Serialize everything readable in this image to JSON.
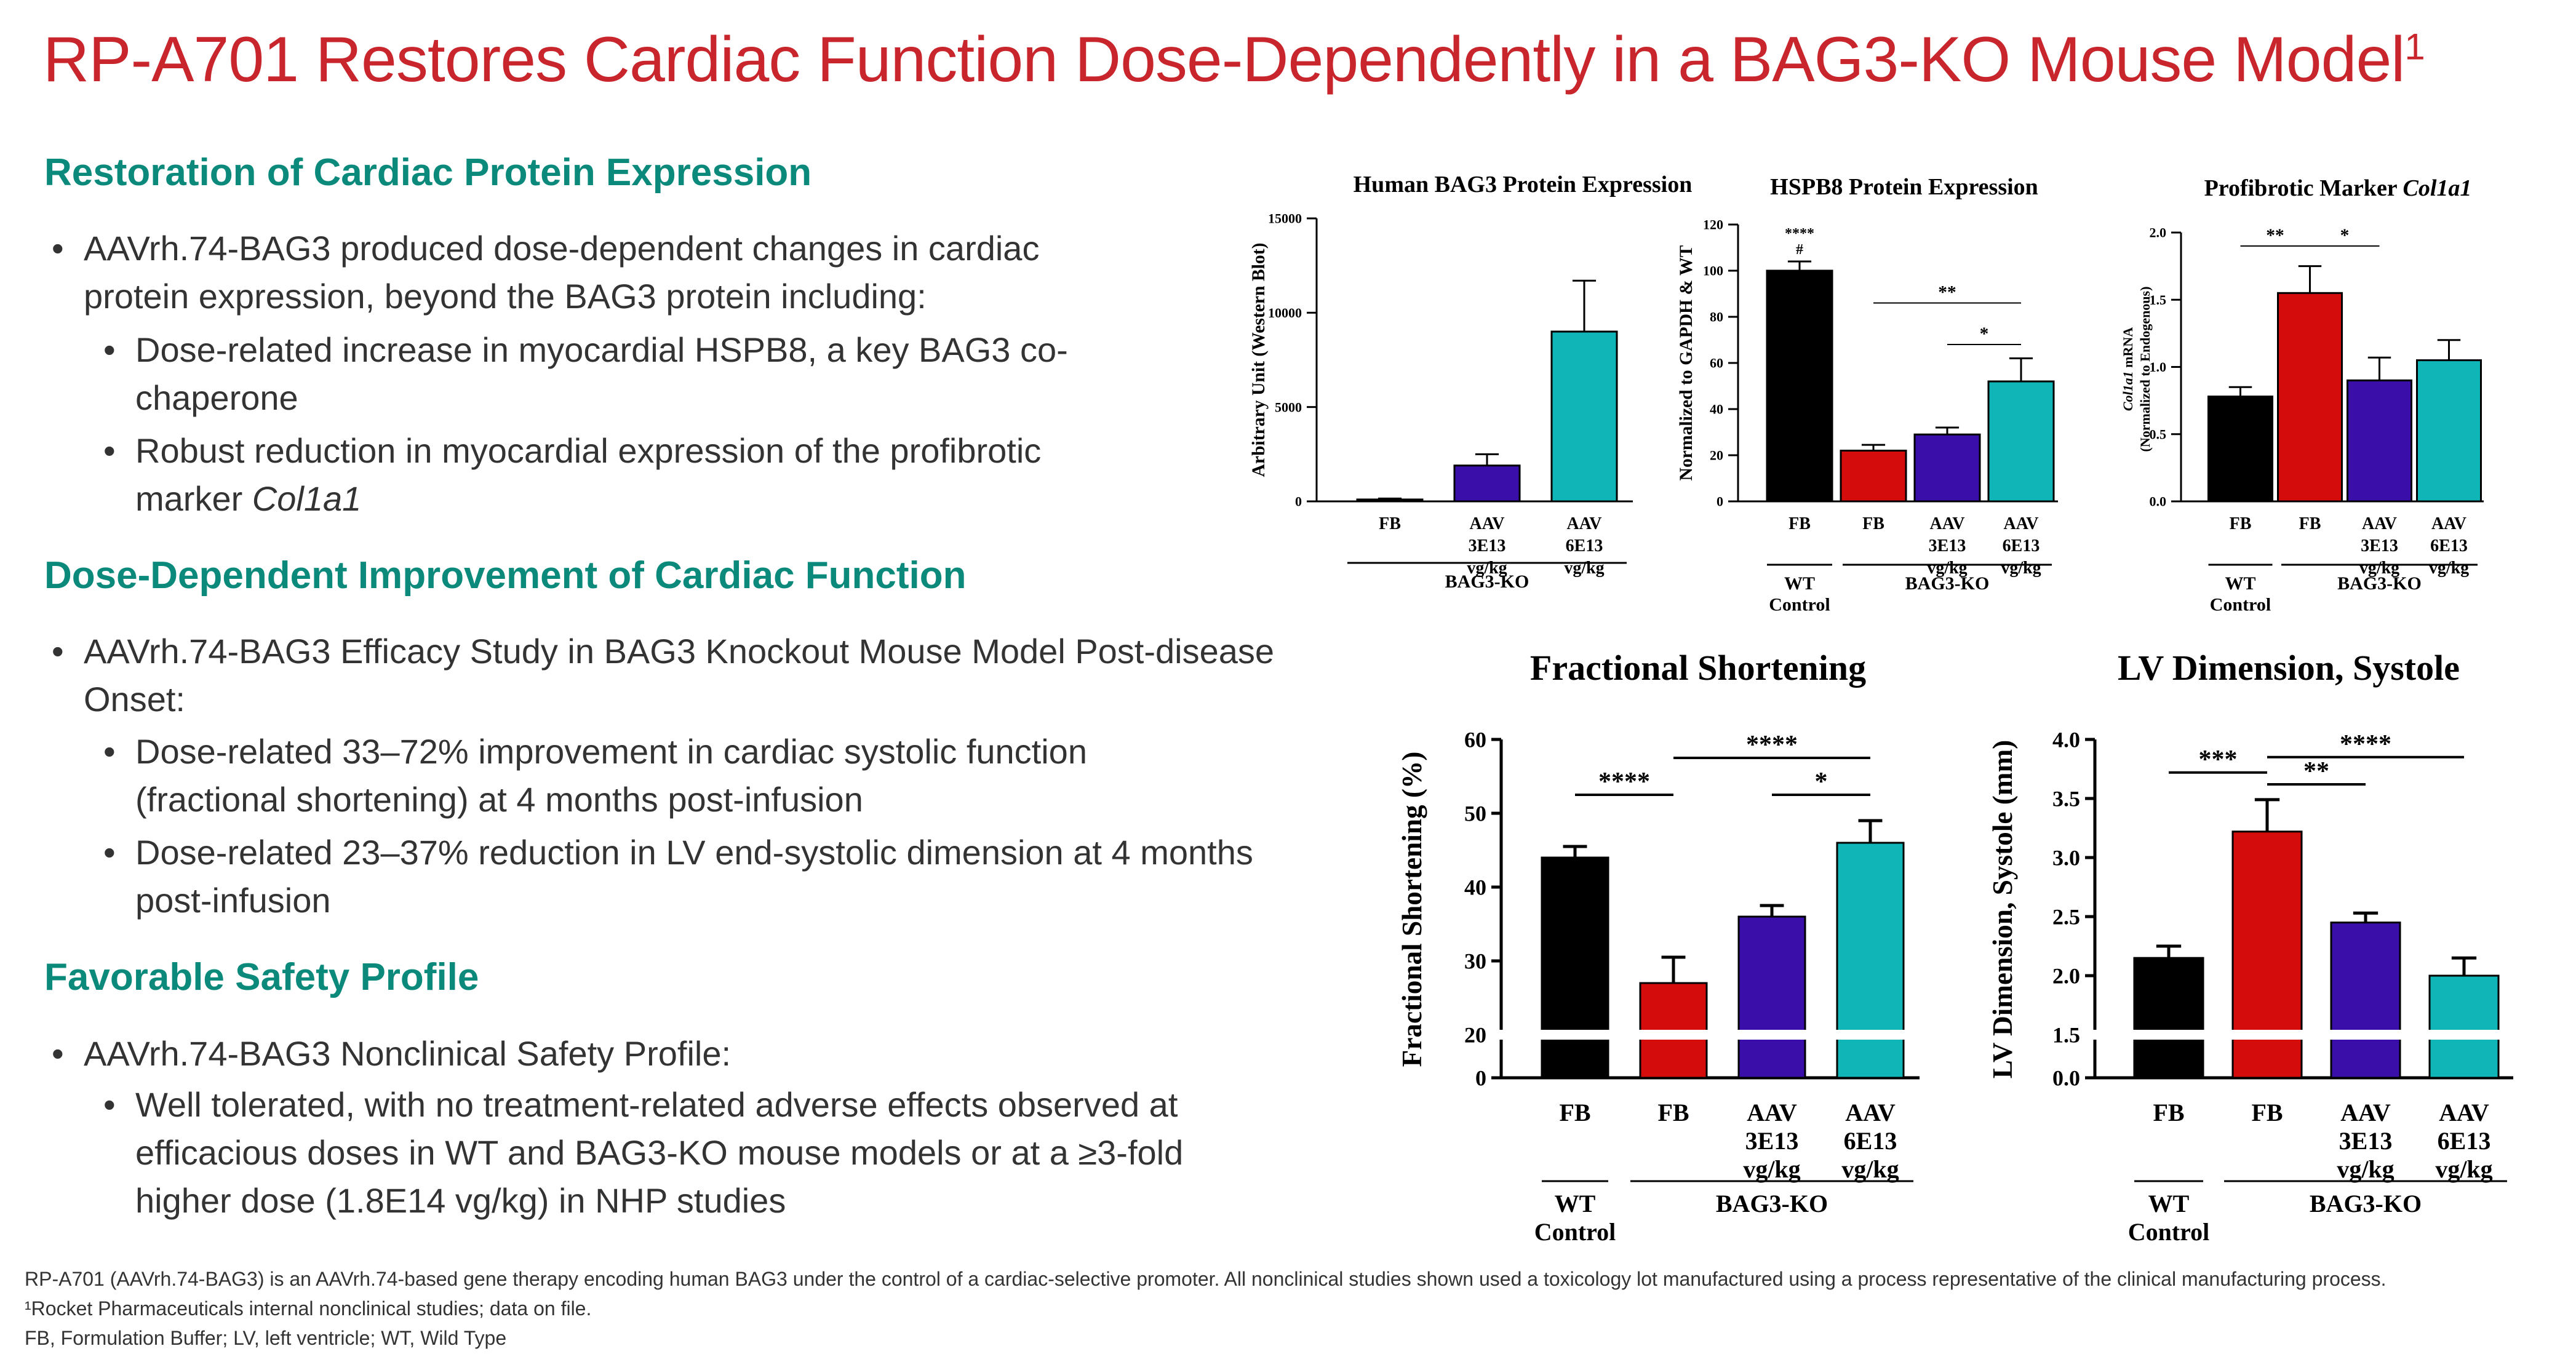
{
  "slide": {
    "title": "RP-A701 Restores Cardiac Function Dose-Dependently in a BAG3-KO Mouse Model",
    "title_sup": "1"
  },
  "sections": [
    {
      "heading": "Restoration of Cardiac Protein Expression",
      "b1_line1": "AAVrh.74-BAG3 produced dose-dependent changes in cardiac",
      "b1_line2": "protein expression, beyond the BAG3 protein including:",
      "s1_line1": "Dose-related increase in myocardial HSPB8, a key BAG3 co-",
      "s1_line2": "chaperone",
      "s2_line1": "Robust reduction in myocardial expression of the profibrotic",
      "s2_line2_a": "marker ",
      "s2_line2_b": "Col1a1"
    },
    {
      "heading": "Dose-Dependent Improvement of Cardiac Function",
      "b1_line1": "AAVrh.74-BAG3 Efficacy Study in BAG3 Knockout Mouse Model Post-disease",
      "b1_line2": "Onset:",
      "s1_line1": "Dose-related 33–72% improvement in cardiac systolic function",
      "s1_line2": "(fractional shortening) at 4 months post-infusion",
      "s2_line1": "Dose-related 23–37% reduction in LV end-systolic dimension at 4 months",
      "s2_line2": "post-infusion"
    },
    {
      "heading": "Favorable Safety Profile",
      "b1_line1": "AAVrh.74-BAG3 Nonclinical Safety Profile:",
      "s1_line1": "Well tolerated, with no treatment-related adverse effects observed at",
      "s1_line2": "efficacious doses in WT and BAG3-KO mouse models or at a ≥3-fold",
      "s1_line3": "higher dose (1.8E14 vg/kg) in NHP studies"
    }
  ],
  "footnotes": {
    "line1": "RP-A701 (AAVrh.74-BAG3) is an AAVrh.74-based gene therapy encoding human BAG3 under the control of a cardiac-selective promoter. All nonclinical studies shown used a toxicology lot manufactured using a process representative of the clinical manufacturing process.",
    "line2": "¹Rocket Pharmaceuticals internal nonclinical studies; data on file.",
    "line3": "FB, Formulation Buffer; LV, left ventricle; WT, Wild Type"
  },
  "group_labels": {
    "wt": "WT",
    "control": "Control",
    "ko": "BAG3-KO"
  },
  "chart_data": [
    {
      "type": "bar",
      "title": "Human BAG3 Protein Expression",
      "ylabel": "Arbitrary Unit (Western Blot)",
      "ylim": [
        0,
        15000
      ],
      "yticks": [
        0,
        5000,
        10000,
        15000
      ],
      "categories": [
        [
          "FB"
        ],
        [
          "AAV",
          "3E13",
          "vg/kg"
        ],
        [
          "AAV",
          "6E13",
          "vg/kg"
        ]
      ],
      "values": [
        100,
        1900,
        9000
      ],
      "errors": [
        50,
        600,
        2700
      ],
      "colors": [
        "#000000",
        "#3a0ea8",
        "#10b5b8"
      ],
      "wt_control": false,
      "significance": []
    },
    {
      "type": "bar",
      "title": "HSPB8 Protein Expression",
      "ylabel": "Normalized to GAPDH & WT",
      "ylim": [
        0,
        120
      ],
      "yticks": [
        0,
        20,
        40,
        60,
        80,
        100,
        120
      ],
      "categories": [
        [
          "FB"
        ],
        [
          "FB"
        ],
        [
          "AAV",
          "3E13",
          "vg/kg"
        ],
        [
          "AAV",
          "6E13",
          "vg/kg"
        ]
      ],
      "values": [
        100,
        22,
        29,
        52
      ],
      "errors": [
        4,
        2.5,
        3,
        10
      ],
      "colors": [
        "#000000",
        "#d40c0c",
        "#3a0ea8",
        "#10b5b8"
      ],
      "wt_control": true,
      "significance": [
        {
          "from": 1,
          "to": 3,
          "y": 86,
          "label": "**"
        },
        {
          "from": 2,
          "to": 3,
          "y": 68,
          "label": "*"
        }
      ],
      "bar_annotations": [
        {
          "bar": 0,
          "lines": [
            "****",
            "#"
          ]
        }
      ]
    },
    {
      "type": "bar",
      "title_a": "Profibrotic Marker ",
      "title_b": "Col1a1",
      "ylabel_a": "Col1a1",
      "ylabel_b": " mRNA",
      "ylabel2": "(Normalized to Endogenous)",
      "ylim": [
        0,
        2.0
      ],
      "yticks": [
        "0.0",
        "0.5",
        "1.0",
        "1.5",
        "2.0"
      ],
      "categories": [
        [
          "FB"
        ],
        [
          "FB"
        ],
        [
          "AAV",
          "3E13",
          "vg/kg"
        ],
        [
          "AAV",
          "6E13",
          "vg/kg"
        ]
      ],
      "values": [
        0.78,
        1.55,
        0.9,
        1.05
      ],
      "errors": [
        0.07,
        0.2,
        0.17,
        0.15
      ],
      "colors": [
        "#000000",
        "#d40c0c",
        "#3a0ea8",
        "#10b5b8"
      ],
      "wt_control": true,
      "significance": [
        {
          "from": 0,
          "to": 1,
          "y": 1.9,
          "label": "**"
        },
        {
          "from": 1,
          "to": 2,
          "y": 1.9,
          "label": "*"
        }
      ]
    },
    {
      "type": "bar",
      "title": "Fractional Shortening",
      "ylabel": "Fractional Shortening (%)",
      "ylim": [
        0,
        60
      ],
      "axis_break": true,
      "yticks": [
        0,
        20,
        30,
        40,
        50,
        60
      ],
      "categories": [
        [
          "FB"
        ],
        [
          "FB"
        ],
        [
          "AAV",
          "3E13",
          "vg/kg"
        ],
        [
          "AAV",
          "6E13",
          "vg/kg"
        ]
      ],
      "values": [
        44,
        27,
        36,
        46
      ],
      "errors": [
        1.5,
        3.5,
        1.5,
        3
      ],
      "colors": [
        "#000000",
        "#d40c0c",
        "#3a0ea8",
        "#10b5b8"
      ],
      "wt_control": true,
      "significance": [
        {
          "from": 0,
          "to": 1,
          "y": 52.5,
          "label": "****"
        },
        {
          "from": 1,
          "to": 3,
          "y": 57.5,
          "label": "****"
        },
        {
          "from": 2,
          "to": 3,
          "y": 52.5,
          "label": "*"
        }
      ]
    },
    {
      "type": "bar",
      "title": "LV Dimension, Systole",
      "ylabel": "LV Dimension, Systole (mm)",
      "ylim": [
        0,
        4.0
      ],
      "axis_break": true,
      "yticks": [
        "0.0",
        "1.5",
        "2.0",
        "2.5",
        "3.0",
        "3.5",
        "4.0"
      ],
      "categories": [
        [
          "FB"
        ],
        [
          "FB"
        ],
        [
          "AAV",
          "3E13",
          "vg/kg"
        ],
        [
          "AAV",
          "6E13",
          "vg/kg"
        ]
      ],
      "values": [
        2.15,
        3.22,
        2.45,
        2.0
      ],
      "errors": [
        0.1,
        0.27,
        0.08,
        0.15
      ],
      "colors": [
        "#000000",
        "#d40c0c",
        "#3a0ea8",
        "#10b5b8"
      ],
      "wt_control": true,
      "significance": [
        {
          "from": 0,
          "to": 1,
          "y": 3.72,
          "label": "***"
        },
        {
          "from": 1,
          "to": 2,
          "y": 3.62,
          "label": "**"
        },
        {
          "from": 1,
          "to": 3,
          "y": 3.85,
          "label": "****"
        }
      ]
    }
  ]
}
